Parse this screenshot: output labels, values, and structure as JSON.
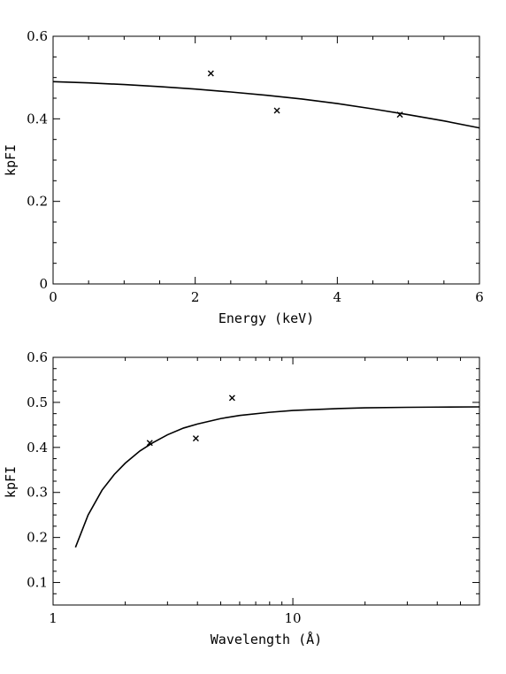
{
  "chart_data": [
    {
      "type": "scatter",
      "title": "",
      "xlabel": "Energy (keV)",
      "ylabel": "kpFI",
      "xlim": [
        0,
        6
      ],
      "ylim": [
        0,
        0.6
      ],
      "x_scale": "linear",
      "x_ticks": [
        0,
        2,
        4,
        6
      ],
      "x_tick_labels": [
        "0",
        "2",
        "4",
        "6"
      ],
      "x_minor_step": 0.5,
      "y_ticks": [
        0,
        0.2,
        0.4,
        0.6
      ],
      "y_tick_labels": [
        "0",
        "0.2",
        "0.4",
        "0.6"
      ],
      "y_minor_step": 0.05,
      "grid": false,
      "series": [
        {
          "kind": "points",
          "marker": "x",
          "x": [
            2.22,
            3.15,
            4.88
          ],
          "y": [
            0.51,
            0.42,
            0.41
          ]
        },
        {
          "kind": "line",
          "x": [
            0.0,
            0.5,
            1.0,
            1.5,
            2.0,
            2.5,
            3.0,
            3.5,
            4.0,
            4.5,
            5.0,
            5.5,
            6.0
          ],
          "y": [
            0.49,
            0.487,
            0.483,
            0.478,
            0.472,
            0.465,
            0.457,
            0.448,
            0.437,
            0.424,
            0.41,
            0.395,
            0.378
          ]
        }
      ]
    },
    {
      "type": "scatter",
      "title": "",
      "xlabel": "Wavelength (Å)",
      "ylabel": "kpFI",
      "xlim": [
        1,
        60
      ],
      "ylim": [
        0.05,
        0.6
      ],
      "x_scale": "log",
      "x_ticks": [
        1,
        10
      ],
      "x_tick_labels": [
        "1",
        "10"
      ],
      "x_minor": [
        2,
        3,
        4,
        5,
        6,
        7,
        8,
        9,
        20,
        30,
        40,
        50
      ],
      "y_ticks": [
        0.1,
        0.2,
        0.3,
        0.4,
        0.5,
        0.6
      ],
      "y_tick_labels": [
        "0.1",
        "0.2",
        "0.3",
        "0.4",
        "0.5",
        "0.6"
      ],
      "y_minor_step": 0.025,
      "grid": false,
      "series": [
        {
          "kind": "points",
          "marker": "x",
          "x": [
            2.53,
            3.94,
            5.58
          ],
          "y": [
            0.41,
            0.42,
            0.51
          ]
        },
        {
          "kind": "line",
          "x": [
            1.24,
            1.4,
            1.6,
            1.8,
            2.0,
            2.3,
            2.6,
            3.0,
            3.5,
            4.0,
            5.0,
            6.0,
            8.0,
            10.0,
            15.0,
            20.0,
            30.0,
            40.0,
            60.0
          ],
          "y": [
            0.178,
            0.25,
            0.305,
            0.34,
            0.365,
            0.392,
            0.41,
            0.428,
            0.443,
            0.452,
            0.464,
            0.471,
            0.478,
            0.482,
            0.486,
            0.488,
            0.489,
            0.4895,
            0.49
          ]
        }
      ]
    }
  ]
}
